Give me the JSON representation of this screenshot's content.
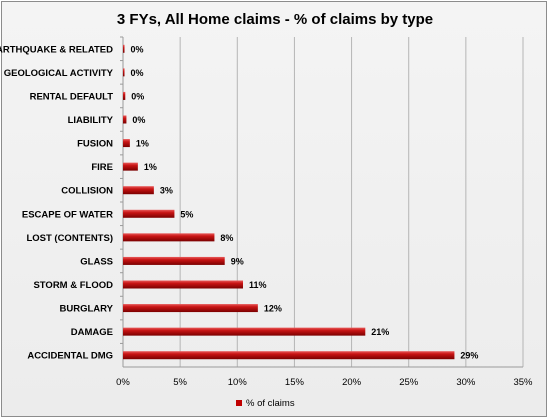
{
  "chart_data": {
    "type": "bar",
    "orientation": "horizontal",
    "title": "3 FYs, All Home claims - % of claims by type",
    "categories": [
      "EARTHQUAKE & RELATED",
      "GEOLOGICAL ACTIVITY",
      "RENTAL DEFAULT",
      "LIABILITY",
      "FUSION",
      "FIRE",
      "COLLISION",
      "ESCAPE OF WATER",
      "LOST (CONTENTS)",
      "GLASS",
      "STORM & FLOOD",
      "BURGLARY",
      "DAMAGE",
      "ACCIDENTAL DMG"
    ],
    "series": [
      {
        "name": "% of claims",
        "values": [
          0.05,
          0.1,
          0.2,
          0.3,
          0.6,
          1.3,
          2.7,
          4.5,
          8.0,
          8.9,
          10.5,
          11.8,
          21.2,
          29.0
        ],
        "labels": [
          "0%",
          "0%",
          "0%",
          "0%",
          "1%",
          "1%",
          "3%",
          "5%",
          "8%",
          "9%",
          "11%",
          "12%",
          "21%",
          "29%"
        ],
        "color": "#c00000"
      }
    ],
    "xlim": [
      0,
      35
    ],
    "x_ticks": [
      "0%",
      "5%",
      "10%",
      "15%",
      "20%",
      "25%",
      "30%",
      "35%"
    ],
    "grid": true,
    "legend_position": "bottom"
  }
}
